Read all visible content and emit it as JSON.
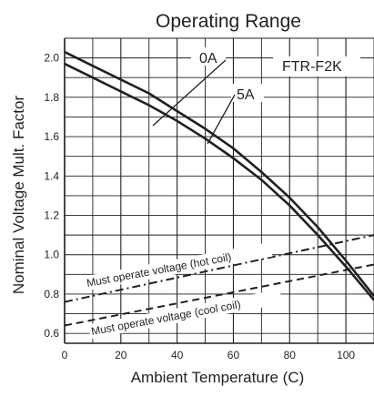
{
  "chart_data": {
    "type": "line",
    "title": "Operating Range",
    "xlabel": "Ambient Temperature (C)",
    "ylabel": "Nominal Voltage Mult. Factor",
    "xlim": [
      0,
      110
    ],
    "ylim": [
      0.55,
      2.1
    ],
    "xticks": [
      0,
      20,
      40,
      60,
      80,
      100
    ],
    "xtick_labels": [
      "0",
      "20",
      "40",
      "60",
      "80",
      "100"
    ],
    "yticks": [
      0.6,
      0.8,
      1.0,
      1.2,
      1.4,
      1.6,
      1.8,
      2.0
    ],
    "ytick_labels": [
      "0.6",
      "0.8",
      "1.0",
      "1.2",
      "1.4",
      "1.6",
      "1.8",
      "2.0"
    ],
    "grid": true,
    "model_label": "FTR-F2K",
    "series": [
      {
        "name": "0A",
        "style": "solid",
        "x": [
          0,
          10,
          20,
          30,
          40,
          50,
          60,
          70,
          80,
          90,
          100,
          110
        ],
        "y": [
          2.03,
          1.96,
          1.89,
          1.82,
          1.73,
          1.64,
          1.54,
          1.42,
          1.29,
          1.14,
          0.97,
          0.79
        ]
      },
      {
        "name": "5A",
        "style": "solid",
        "x": [
          0,
          10,
          20,
          30,
          40,
          50,
          60,
          70,
          80,
          90,
          100,
          110
        ],
        "y": [
          1.97,
          1.9,
          1.83,
          1.76,
          1.68,
          1.59,
          1.49,
          1.38,
          1.25,
          1.1,
          0.94,
          0.77
        ]
      },
      {
        "name": "Must operate voltage (hot coil)",
        "style": "dash-dot",
        "x": [
          0,
          110
        ],
        "y": [
          0.76,
          1.1
        ]
      },
      {
        "name": "Must operate voltage (cool coil)",
        "style": "dashed",
        "x": [
          0,
          110
        ],
        "y": [
          0.64,
          0.95
        ]
      }
    ],
    "colors": {
      "line": "#231f20",
      "grid": "#231f20",
      "background": "#ffffff"
    }
  }
}
